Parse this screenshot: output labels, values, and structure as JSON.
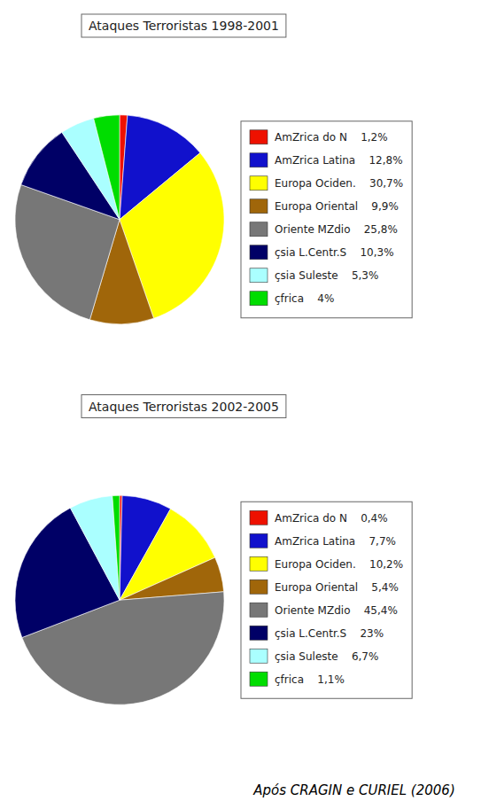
{
  "chart_data": [
    {
      "type": "pie",
      "title": "Ataques Terroristas 1998-2001",
      "categories": [
        "AmZrica do N    1,2%",
        "AmZrica Latina    12,8%",
        "Europa Ociden.    30,7%",
        "Europa Oriental    9,9%",
        "Oriente MZdio    25,8%",
        "çsia L.Centr.S    10,3%",
        "çsia Suleste    5,3%",
        "çfrica    4%"
      ],
      "values": [
        1.2,
        12.8,
        30.7,
        9.9,
        25.8,
        10.3,
        5.3,
        4.0
      ],
      "colors": [
        "#EE1100",
        "#1111CC",
        "#FFFF00",
        "#A0660A",
        "#777777",
        "#000066",
        "#AAFFFF",
        "#00DD00"
      ],
      "legend": "right"
    },
    {
      "type": "pie",
      "title": "Ataques Terroristas 2002-2005",
      "categories": [
        "AmZrica do N    0,4%",
        "AmZrica Latina    7,7%",
        "Europa Ociden.    10,2%",
        "Europa Oriental    5,4%",
        "Oriente MZdio    45,4%",
        "çsia L.Centr.S    23%",
        "çsia Suleste    6,7%",
        "çfrica    1,1%"
      ],
      "values": [
        0.4,
        7.7,
        10.2,
        5.4,
        45.4,
        23.0,
        6.7,
        1.1
      ],
      "colors": [
        "#EE1100",
        "#1111CC",
        "#FFFF00",
        "#A0660A",
        "#777777",
        "#000066",
        "#AAFFFF",
        "#00DD00"
      ],
      "legend": "right",
      "annotations": [
        "Após CRAGIN e CURIEL (2006)"
      ]
    }
  ]
}
